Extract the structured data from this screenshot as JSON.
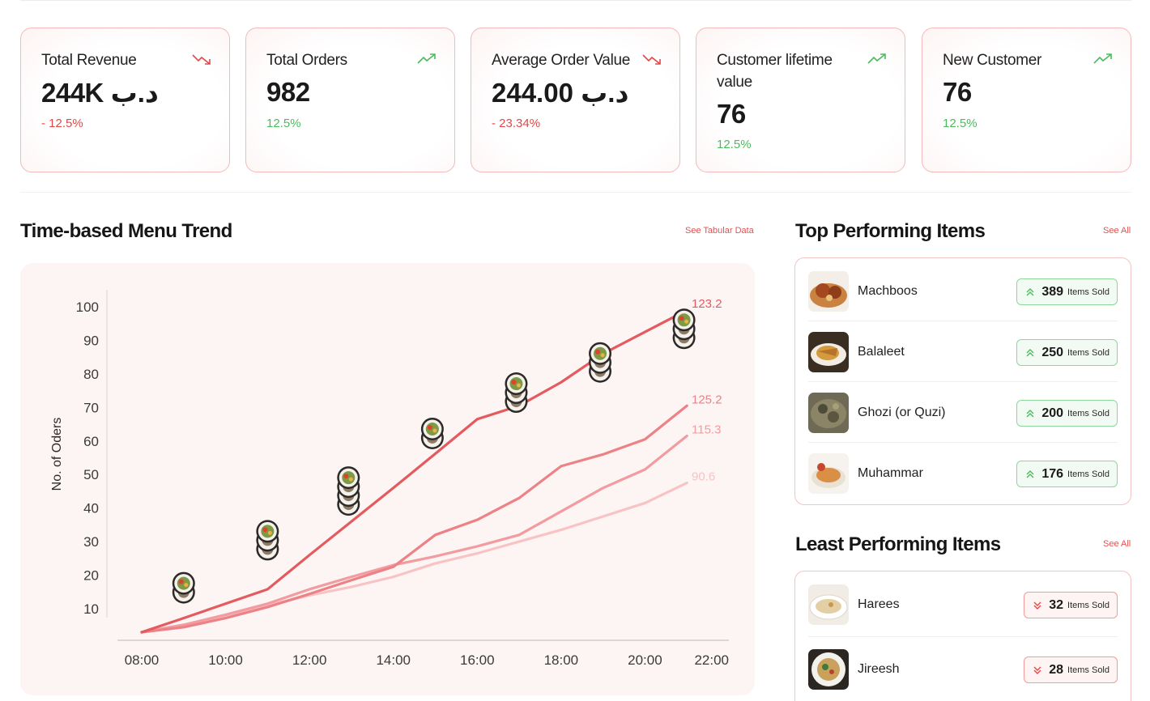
{
  "kpis": [
    {
      "title": "Total Revenue",
      "value": "244K د.ب",
      "delta": "- 12.5%",
      "trend": "down"
    },
    {
      "title": "Total Orders",
      "value": "982",
      "delta": "12.5%",
      "trend": "up"
    },
    {
      "title": "Average Order Value",
      "value": "244.00 د.ب",
      "delta": "- 23.34%",
      "trend": "down"
    },
    {
      "title": "Customer lifetime value",
      "value": "76",
      "delta": "12.5%",
      "trend": "up"
    },
    {
      "title": "New Customer",
      "value": "76",
      "delta": "12.5%",
      "trend": "up"
    }
  ],
  "trend_section": {
    "title": "Time-based Menu Trend",
    "link": "See Tabular Data"
  },
  "top_items": {
    "title": "Top Performing Items",
    "link": "See All",
    "items": [
      {
        "name": "Machboos",
        "count": "389",
        "unit": "Items Sold"
      },
      {
        "name": "Balaleet",
        "count": "250",
        "unit": "Items Sold"
      },
      {
        "name": "Ghozi (or Quzi)",
        "count": "200",
        "unit": "Items Sold"
      },
      {
        "name": "Muhammar",
        "count": "176",
        "unit": "Items Sold"
      }
    ]
  },
  "least_items": {
    "title": "Least Performing Items",
    "link": "See All",
    "items": [
      {
        "name": "Harees",
        "count": "32",
        "unit": "Items Sold"
      },
      {
        "name": "Jireesh",
        "count": "28",
        "unit": "Items Sold"
      }
    ]
  },
  "colors": {
    "accent": "#e05252",
    "up": "#4cbb5d",
    "down": "#e14848",
    "card_border": "#f4b9b9"
  },
  "chart_data": {
    "type": "line",
    "ylabel": "No. of Oders",
    "xlabel": "",
    "ylim": [
      3,
      100
    ],
    "y_ticks": [
      100,
      90,
      80,
      70,
      60,
      50,
      40,
      30,
      20,
      10
    ],
    "x_ticks": [
      "08:00",
      "10:00",
      "12:00",
      "14:00",
      "16:00",
      "18:00",
      "20:00",
      "22:00"
    ],
    "x": [
      8,
      9,
      10,
      11,
      12,
      13,
      14,
      15,
      16,
      17,
      18,
      19,
      20,
      21
    ],
    "series": [
      {
        "name": "123.2",
        "color": "#e35a5f",
        "opacity": 1,
        "values": [
          3,
          7.2,
          11.5,
          15.8,
          26,
          36,
          46,
          56.2,
          66.5,
          70.5,
          77.5,
          86,
          92.5,
          99
        ]
      },
      {
        "name": "125.2",
        "color": "#ec8186",
        "opacity": 1,
        "values": [
          3,
          4.5,
          7.2,
          10.5,
          14.4,
          18.5,
          22.5,
          32,
          36.5,
          43,
          52.5,
          56,
          60.5,
          70.5
        ]
      },
      {
        "name": "115.3",
        "color": "#f29ba0",
        "opacity": 1,
        "values": [
          3,
          5.2,
          8.2,
          11.5,
          15.8,
          19.5,
          23,
          25.6,
          28.6,
          32,
          39,
          46,
          51.5,
          61.5
        ]
      },
      {
        "name": "90.6",
        "color": "#f7c3c5",
        "opacity": 1,
        "values": [
          3,
          5,
          8,
          11,
          14,
          16.5,
          19.5,
          23.5,
          26.5,
          30,
          33.5,
          37.5,
          41.5,
          47.5
        ]
      }
    ],
    "thumbnail_stacks": [
      {
        "x": 9,
        "y_top": 19.5,
        "count": 2
      },
      {
        "x": 11,
        "y_top": 35,
        "count": 3
      },
      {
        "x": 12.93,
        "y_top": 51,
        "count": 4
      },
      {
        "x": 14.93,
        "y_top": 65.5,
        "count": 2
      },
      {
        "x": 16.93,
        "y_top": 79,
        "count": 3
      },
      {
        "x": 18.93,
        "y_top": 88,
        "count": 3
      },
      {
        "x": 20.93,
        "y_top": 98,
        "count": 3
      }
    ]
  }
}
